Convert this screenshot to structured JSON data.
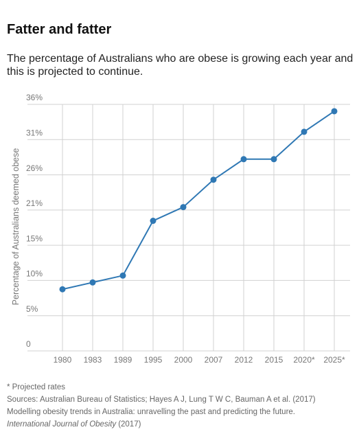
{
  "chart_data": {
    "type": "line",
    "title": "Fatter and fatter",
    "subtitle": "The percentage of Australians who are obese is growing each year and this is projected to continue.",
    "y_label": "Percentage of Australians deemed obese",
    "categories": [
      "1980",
      "1983",
      "1989",
      "1995",
      "2000",
      "2007",
      "2012",
      "2015",
      "2020*",
      "2025*"
    ],
    "series": [
      {
        "name": "Obese",
        "color": "#2f78b4",
        "values": [
          9,
          10,
          11,
          19,
          21,
          25,
          28,
          28,
          32,
          35
        ]
      }
    ],
    "ylim": [
      0,
      36
    ],
    "yticks": [
      0,
      {
        "value": 5.14,
        "label": "5%"
      },
      {
        "value": 10.29,
        "label": "10%"
      },
      {
        "value": 15.43,
        "label": "15%"
      },
      {
        "value": 20.57,
        "label": "21%"
      },
      {
        "value": 25.71,
        "label": "26%"
      },
      {
        "value": 30.86,
        "label": "31%"
      },
      {
        "value": 36,
        "label": "36%"
      }
    ],
    "grid": true,
    "notes": [
      "* Projected rates",
      "Sources: Australian Bureau of Statistics; Hayes A J, Lung T W C, Bauman A et al. (2017)",
      "Modelling obesity trends in Australia: unravelling the past and predicting the future."
    ],
    "journal": "International Journal of Obesity",
    "journal_year": "(2017)"
  }
}
